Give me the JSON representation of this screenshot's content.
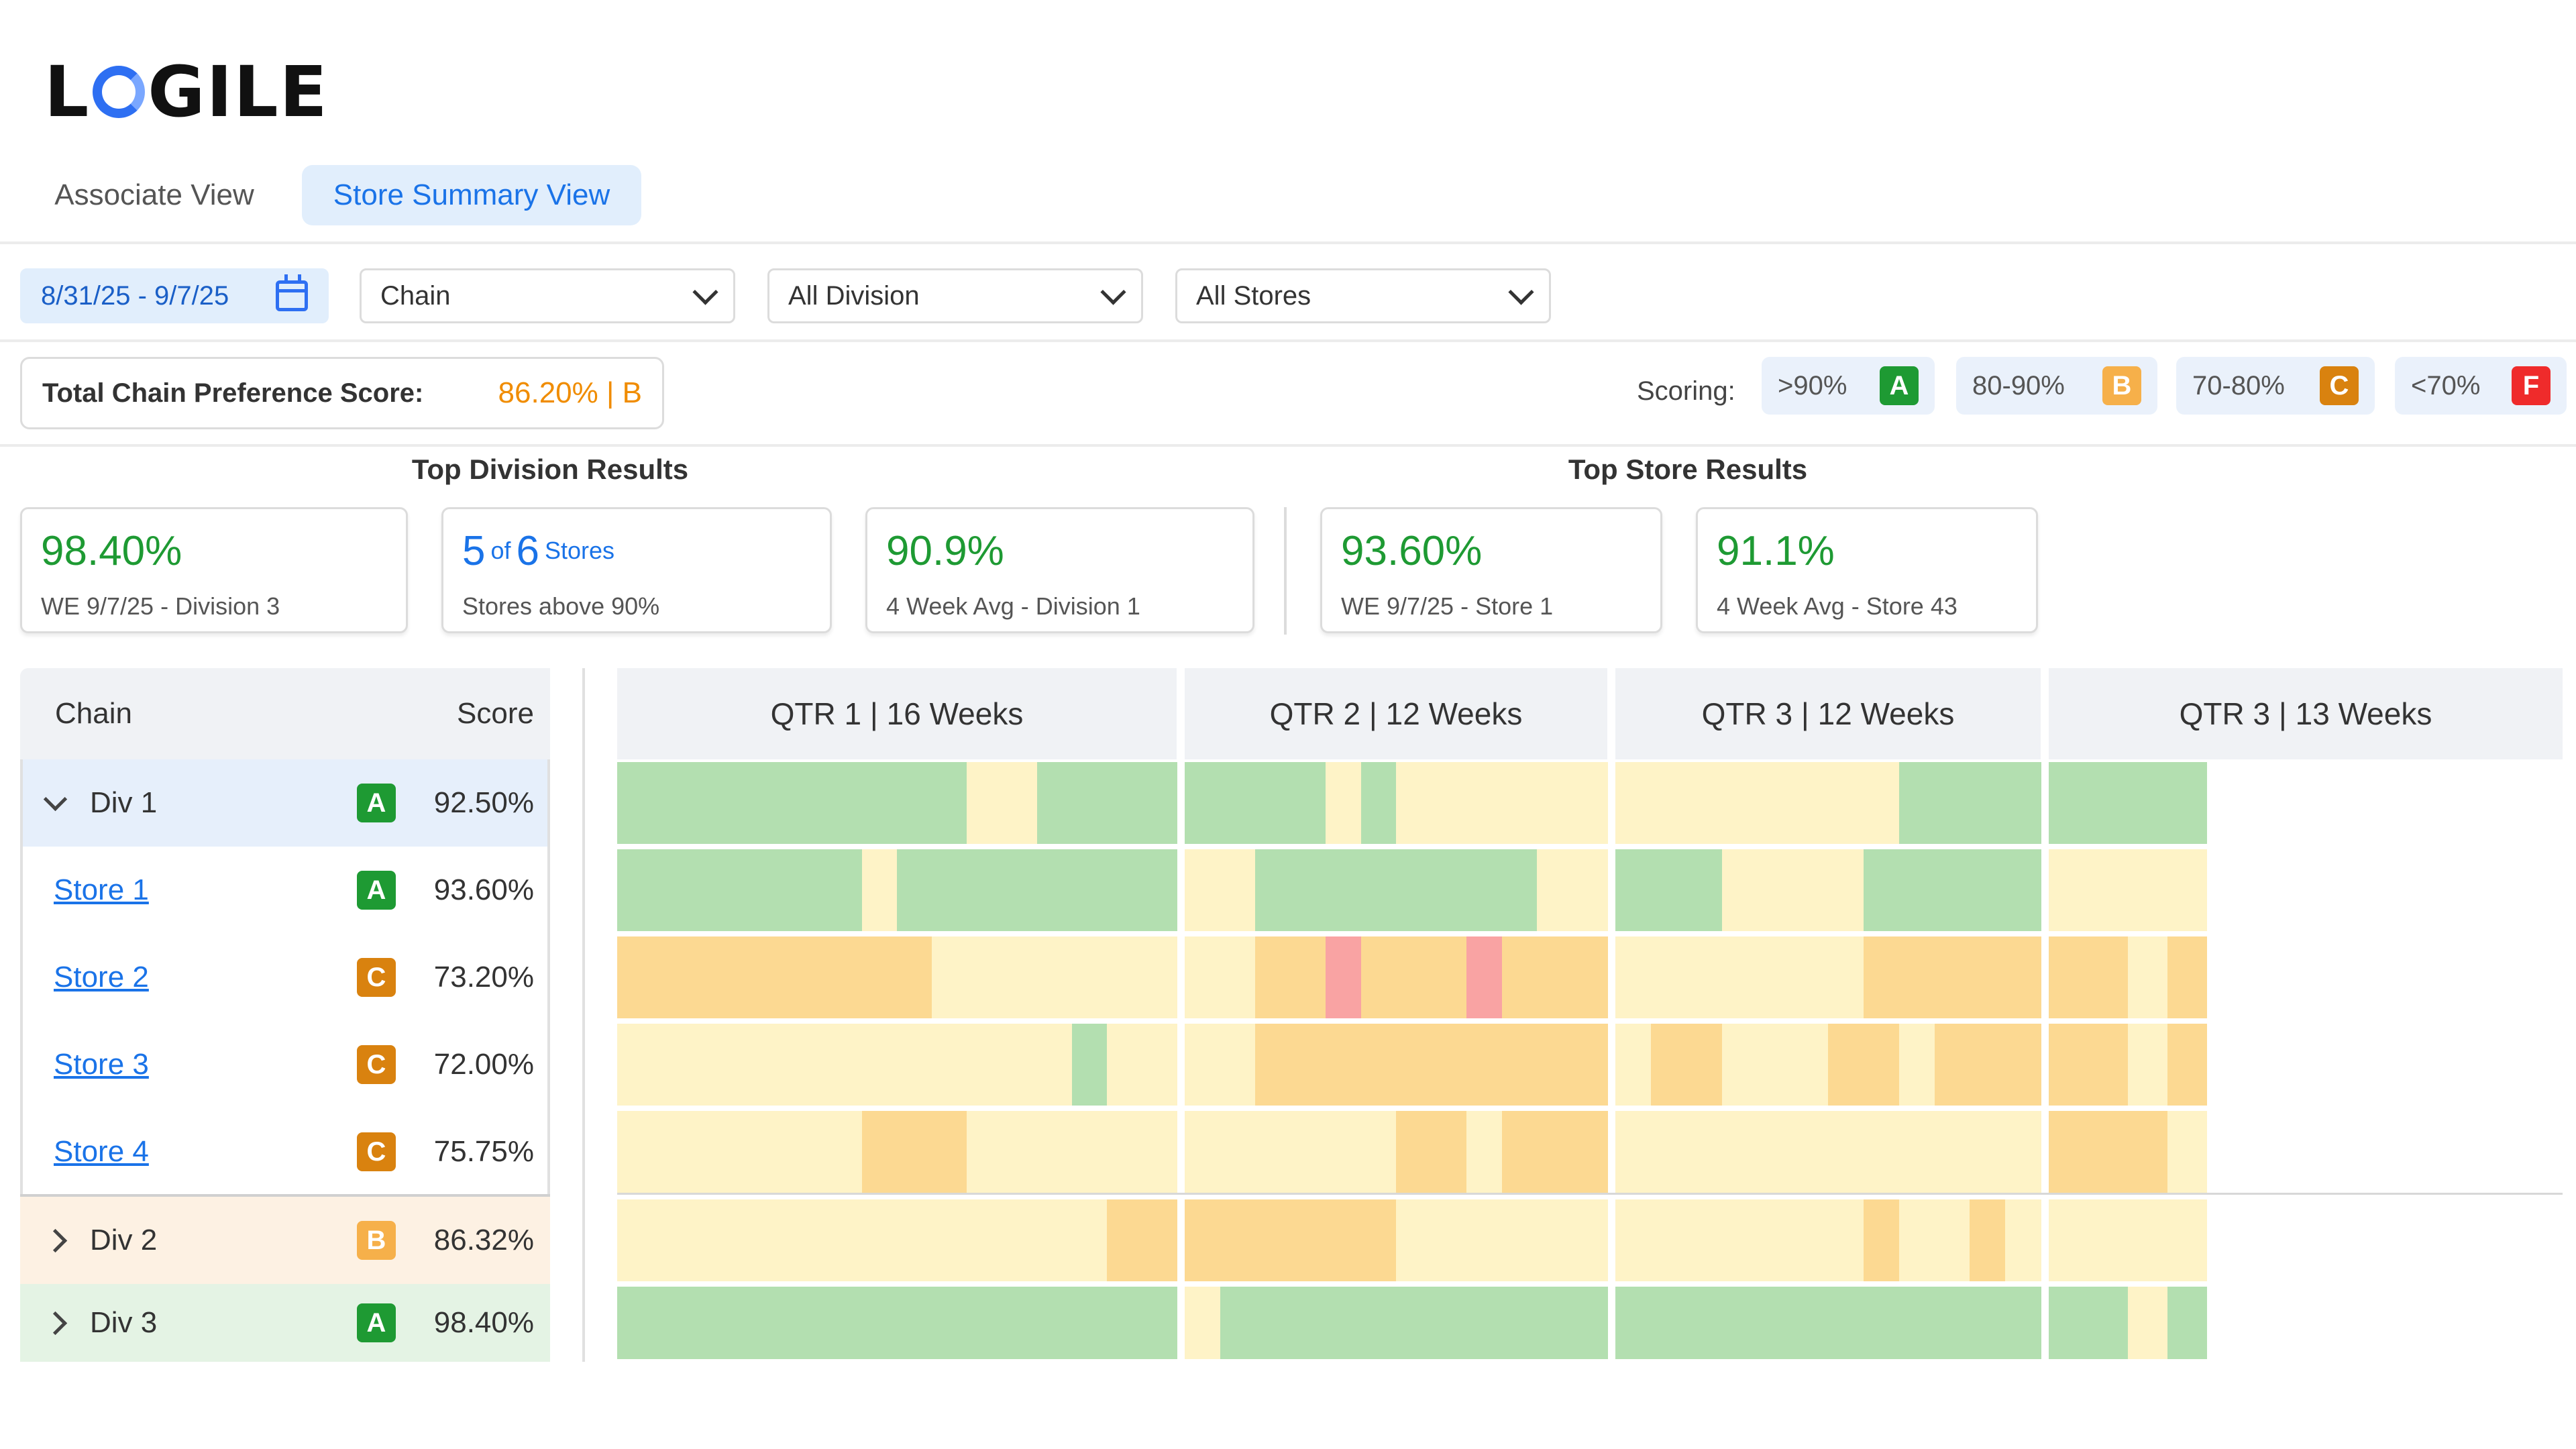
{
  "brand": {
    "logo_left": "L",
    "logo_right": "GILE"
  },
  "tabs": [
    {
      "label": "Associate View",
      "active": false
    },
    {
      "label": "Store Summary View",
      "active": true
    }
  ],
  "filters": {
    "date_range": "8/31/25 - 9/7/25",
    "level": "Chain",
    "division": "All Division",
    "stores": "All Stores"
  },
  "total": {
    "label": "Total  Chain Preference Score:",
    "value": "86.20% | B"
  },
  "scoring": {
    "label": "Scoring:",
    "ranges": [
      {
        "range": ">90%",
        "grade": "A",
        "color": "#1e9a33"
      },
      {
        "range": "80-90%",
        "grade": "B",
        "color": "#f6b04a"
      },
      {
        "range": "70-80%",
        "grade": "C",
        "color": "#d9820f"
      },
      {
        "range": "<70%",
        "grade": "F",
        "color": "#ef2b2b"
      }
    ]
  },
  "sections": {
    "division": "Top Division Results",
    "store": "Top Store Results"
  },
  "kpis": {
    "div_best": {
      "value": "98.40%",
      "sub": "WE 9/7/25 - Division 3"
    },
    "stores_above": {
      "count": "5",
      "of": "of",
      "total": "6",
      "unit": "Stores",
      "sub": "Stores above 90%"
    },
    "div_avg": {
      "value": "90.9%",
      "sub": "4 Week Avg - Division 1"
    },
    "store_best": {
      "value": "93.60%",
      "sub": "WE 9/7/25 - Store 1"
    },
    "store_avg": {
      "value": "91.1%",
      "sub": "4 Week Avg - Store 43"
    }
  },
  "table": {
    "col_name": "Chain",
    "col_score": "Score",
    "rows": [
      {
        "name": "Div 1",
        "type": "division",
        "expanded": true,
        "grade": "A",
        "score": "92.50%"
      },
      {
        "name": "Store 1",
        "type": "store",
        "grade": "A",
        "score": "93.60%"
      },
      {
        "name": "Store 2",
        "type": "store",
        "grade": "C",
        "score": "73.20%"
      },
      {
        "name": "Store 3",
        "type": "store",
        "grade": "C",
        "score": "72.00%"
      },
      {
        "name": "Store 4",
        "type": "store",
        "grade": "C",
        "score": "75.75%"
      },
      {
        "name": "Div 2",
        "type": "division",
        "expanded": false,
        "grade": "B",
        "score": "86.32%"
      },
      {
        "name": "Div 3",
        "type": "division",
        "expanded": false,
        "grade": "A",
        "score": "98.40%"
      }
    ]
  },
  "quarters": [
    {
      "label": "QTR 1 | 16 Weeks",
      "weeks": 16
    },
    {
      "label": "QTR 2 | 12 Weeks",
      "weeks": 12
    },
    {
      "label": "QTR 3 | 12 Weeks",
      "weeks": 12
    },
    {
      "label": "QTR 3 | 13 Weeks",
      "weeks": 13,
      "filled_weeks": 4.5
    }
  ],
  "heatmap_grades": [
    [
      "A",
      "A",
      "A",
      "A",
      "A",
      "A",
      "A",
      "A",
      "A",
      "A",
      "B",
      "B",
      "A",
      "A",
      "A",
      "A",
      "A",
      "A",
      "A",
      "A",
      "B",
      "A",
      "B",
      "B",
      "B",
      "B",
      "B",
      "B",
      "B",
      "B",
      "B",
      "B",
      "B",
      "B",
      "B",
      "B",
      "A",
      "A",
      "A",
      "A",
      "A",
      "A",
      "A",
      "A"
    ],
    [
      "A",
      "A",
      "A",
      "A",
      "A",
      "A",
      "A",
      "B",
      "A",
      "A",
      "A",
      "A",
      "A",
      "A",
      "A",
      "A",
      "B",
      "B",
      "A",
      "A",
      "A",
      "A",
      "A",
      "A",
      "A",
      "A",
      "B",
      "B",
      "A",
      "A",
      "A",
      "B",
      "B",
      "B",
      "B",
      "A",
      "A",
      "A",
      "A",
      "A",
      "B",
      "B",
      "B",
      "B"
    ],
    [
      "C",
      "C",
      "C",
      "C",
      "C",
      "C",
      "C",
      "C",
      "C",
      "B",
      "B",
      "B",
      "B",
      "B",
      "B",
      "B",
      "B",
      "B",
      "C",
      "C",
      "F",
      "C",
      "C",
      "C",
      "F",
      "C",
      "C",
      "C",
      "B",
      "B",
      "B",
      "B",
      "B",
      "B",
      "B",
      "C",
      "C",
      "C",
      "C",
      "C",
      "C",
      "C",
      "B",
      "C"
    ],
    [
      "B",
      "B",
      "B",
      "B",
      "B",
      "B",
      "B",
      "B",
      "B",
      "B",
      "B",
      "B",
      "B",
      "A",
      "B",
      "B",
      "B",
      "B",
      "C",
      "C",
      "C",
      "C",
      "C",
      "C",
      "C",
      "C",
      "C",
      "C",
      "B",
      "C",
      "C",
      "B",
      "B",
      "B",
      "C",
      "C",
      "B",
      "C",
      "C",
      "C",
      "C",
      "C",
      "B",
      "C"
    ],
    [
      "B",
      "B",
      "B",
      "B",
      "B",
      "B",
      "B",
      "C",
      "C",
      "C",
      "B",
      "B",
      "B",
      "B",
      "B",
      "B",
      "B",
      "B",
      "B",
      "B",
      "B",
      "B",
      "C",
      "C",
      "B",
      "C",
      "C",
      "C",
      "B",
      "B",
      "B",
      "B",
      "B",
      "B",
      "B",
      "B",
      "B",
      "B",
      "B",
      "B",
      "C",
      "C",
      "C",
      "B"
    ],
    [
      "B",
      "B",
      "B",
      "B",
      "B",
      "B",
      "B",
      "B",
      "B",
      "B",
      "B",
      "B",
      "B",
      "B",
      "C",
      "C",
      "C",
      "C",
      "C",
      "C",
      "C",
      "C",
      "B",
      "B",
      "B",
      "B",
      "B",
      "B",
      "B",
      "B",
      "B",
      "B",
      "B",
      "B",
      "B",
      "C",
      "B",
      "B",
      "C",
      "B",
      "B",
      "B",
      "B",
      "B"
    ],
    [
      "A",
      "A",
      "A",
      "A",
      "A",
      "A",
      "A",
      "A",
      "A",
      "A",
      "A",
      "A",
      "A",
      "A",
      "A",
      "A",
      "B",
      "A",
      "A",
      "A",
      "A",
      "A",
      "A",
      "A",
      "A",
      "A",
      "A",
      "A",
      "A",
      "A",
      "A",
      "A",
      "A",
      "A",
      "A",
      "A",
      "A",
      "A",
      "A",
      "A",
      "A",
      "A",
      "B",
      "A"
    ]
  ]
}
